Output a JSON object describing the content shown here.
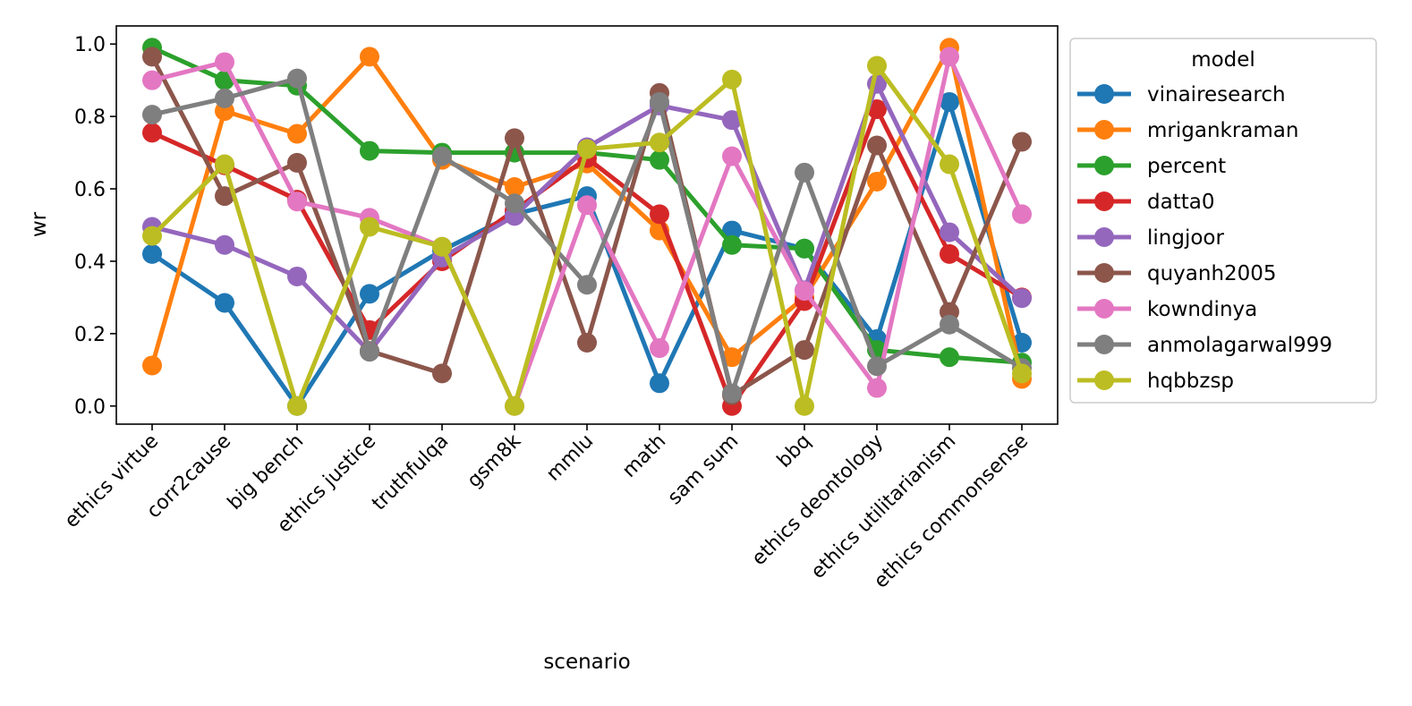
{
  "chart_data": {
    "type": "line",
    "title": "",
    "xlabel": "scenario",
    "ylabel": "wr",
    "ylim": [
      -0.05,
      1.05
    ],
    "yticks": [
      "0.0",
      "0.2",
      "0.4",
      "0.6",
      "0.8",
      "1.0"
    ],
    "ytick_values": [
      0.0,
      0.2,
      0.4,
      0.6,
      0.8,
      1.0
    ],
    "categories": [
      "ethics virtue",
      "corr2cause",
      "big bench",
      "ethics justice",
      "truthfulqa",
      "gsm8k",
      "mmlu",
      "math",
      "sam sum",
      "bbq",
      "ethics deontology",
      "ethics utilitarianism",
      "ethics commonsense"
    ],
    "legend_title": "model",
    "legend_position": "outside-right",
    "series": [
      {
        "name": "vinairesearch",
        "color": "#1f77b4",
        "values": [
          0.42,
          0.285,
          0.0,
          0.31,
          0.43,
          0.53,
          0.58,
          0.063,
          0.485,
          0.435,
          0.185,
          0.84,
          0.175
        ]
      },
      {
        "name": "mrigankraman",
        "color": "#ff7f0e",
        "values": [
          0.112,
          0.815,
          0.752,
          0.965,
          0.68,
          0.605,
          0.67,
          0.485,
          0.135,
          0.3,
          0.62,
          0.99,
          0.075
        ]
      },
      {
        "name": "percent",
        "color": "#2ca02c",
        "values": [
          0.99,
          0.9,
          0.885,
          0.705,
          0.7,
          0.7,
          0.7,
          0.68,
          0.445,
          0.435,
          0.155,
          0.135,
          0.12
        ]
      },
      {
        "name": "datta0",
        "color": "#d62728",
        "values": [
          0.755,
          0.665,
          0.57,
          0.21,
          0.4,
          0.54,
          0.685,
          0.53,
          0.0,
          0.29,
          0.82,
          0.42,
          0.3
        ]
      },
      {
        "name": "lingjoor",
        "color": "#9467bd",
        "values": [
          0.495,
          0.445,
          0.358,
          0.15,
          0.41,
          0.525,
          0.715,
          0.83,
          0.79,
          0.32,
          0.89,
          0.48,
          0.298
        ]
      },
      {
        "name": "quyanh2005",
        "color": "#8c564b",
        "values": [
          0.965,
          0.58,
          0.672,
          0.152,
          0.09,
          0.74,
          0.175,
          0.865,
          0.03,
          0.155,
          0.72,
          0.26,
          0.73
        ]
      },
      {
        "name": "kowndinya",
        "color": "#e377c2",
        "values": [
          0.9,
          0.95,
          0.565,
          0.52,
          0.44,
          0.0,
          0.555,
          0.16,
          0.69,
          0.318,
          0.05,
          0.965,
          0.53
        ]
      },
      {
        "name": "anmolagarwal999",
        "color": "#7f7f7f",
        "values": [
          0.805,
          0.85,
          0.905,
          0.15,
          0.69,
          0.56,
          0.335,
          0.84,
          0.035,
          0.645,
          0.11,
          0.225,
          0.105
        ]
      },
      {
        "name": "hqbbzsp",
        "color": "#bcbd22",
        "values": [
          0.47,
          0.668,
          0.0,
          0.495,
          0.44,
          0.0,
          0.71,
          0.728,
          0.902,
          0.0,
          0.94,
          0.668,
          0.09
        ]
      }
    ]
  }
}
